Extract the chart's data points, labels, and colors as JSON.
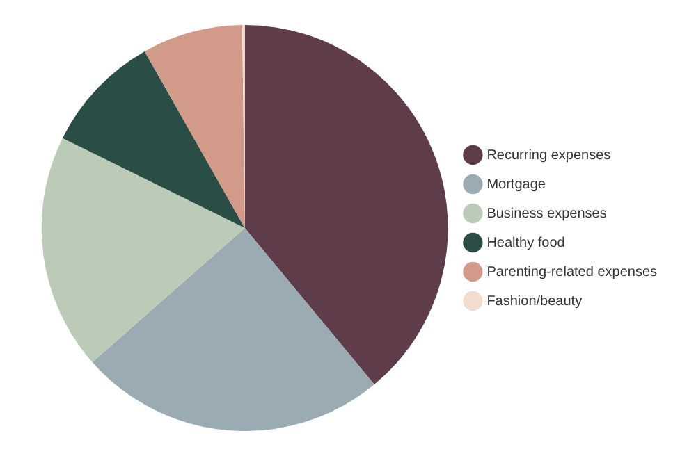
{
  "chart_data": {
    "type": "pie",
    "categories": [
      "Recurring expenses",
      "Mortgage",
      "Business expenses",
      "Healthy food",
      "Parenting-related expenses",
      "Fashion/beauty"
    ],
    "values": [
      39.0,
      24.5,
      18.8,
      9.5,
      8.0,
      0.2
    ],
    "colors": [
      "#5e3c4a",
      "#9aabb3",
      "#bccab8",
      "#2a4d45",
      "#d29a88",
      "#f1dcd0"
    ],
    "legend": "right"
  }
}
